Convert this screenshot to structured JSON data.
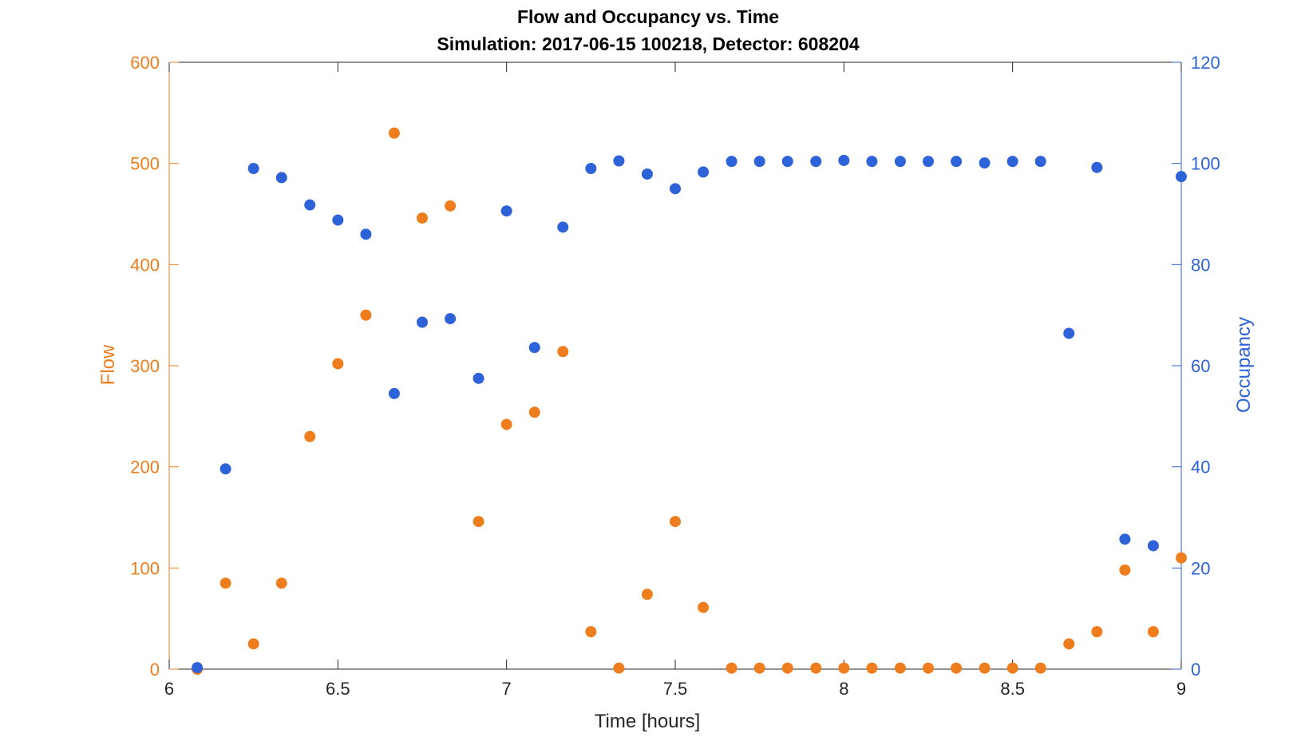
{
  "chart_data": {
    "type": "scatter",
    "title": "Flow and Occupancy vs. Time",
    "subtitle": "Simulation:  2017-06-15 100218,  Detector:  608204",
    "xlabel": "Time [hours]",
    "ylabel_left": "Flow",
    "ylabel_right": "Occupancy",
    "xlim": [
      6,
      9
    ],
    "ylim_left": [
      0,
      600
    ],
    "ylim_right": [
      0,
      120
    ],
    "x_ticks": [
      "6",
      "6.5",
      "7",
      "7.5",
      "8",
      "8.5",
      "9"
    ],
    "y_left_ticks": [
      "0",
      "100",
      "200",
      "300",
      "400",
      "500",
      "600"
    ],
    "y_right_ticks": [
      "0",
      "20",
      "40",
      "60",
      "80",
      "100",
      "120"
    ],
    "grid": false,
    "colors": {
      "flow": "#EE7E1D",
      "occupancy": "#2D62D8",
      "axis": "#262626"
    },
    "series": [
      {
        "key": "flow",
        "axis": "left",
        "x": [
          6.083,
          6.167,
          6.25,
          6.333,
          6.417,
          6.5,
          6.583,
          6.667,
          6.75,
          6.833,
          6.917,
          7.0,
          7.083,
          7.167,
          7.25,
          7.333,
          7.417,
          7.5,
          7.583,
          7.667,
          7.75,
          7.833,
          7.917,
          8.0,
          8.083,
          8.167,
          8.25,
          8.333,
          8.417,
          8.5,
          8.583,
          8.667,
          8.75,
          8.833,
          8.917,
          9.0
        ],
        "values": [
          0,
          85,
          25,
          85,
          230,
          302,
          350,
          530,
          446,
          458,
          146,
          242,
          254,
          314,
          37,
          1,
          74,
          146,
          61,
          1,
          1,
          1,
          1,
          1,
          1,
          1,
          1,
          1,
          1,
          1,
          1,
          25,
          37,
          98,
          37,
          110
        ]
      },
      {
        "key": "occupancy",
        "axis": "right",
        "x": [
          6.083,
          6.167,
          6.25,
          6.333,
          6.417,
          6.5,
          6.583,
          6.667,
          6.75,
          6.833,
          6.917,
          7.0,
          7.083,
          7.167,
          7.25,
          7.333,
          7.417,
          7.5,
          7.583,
          7.667,
          7.75,
          7.833,
          7.917,
          8.0,
          8.083,
          8.167,
          8.25,
          8.333,
          8.417,
          8.5,
          8.583,
          8.667,
          8.75,
          8.833,
          8.917,
          9.0
        ],
        "values": [
          0.3,
          39.6,
          99.0,
          97.2,
          91.8,
          88.8,
          86.0,
          54.5,
          68.6,
          69.3,
          57.5,
          90.6,
          63.6,
          87.4,
          99.0,
          100.5,
          97.9,
          95.0,
          98.3,
          100.4,
          100.4,
          100.4,
          100.4,
          100.6,
          100.4,
          100.4,
          100.4,
          100.4,
          100.1,
          100.4,
          100.4,
          66.4,
          99.2,
          25.7,
          24.4,
          97.4
        ]
      }
    ]
  }
}
